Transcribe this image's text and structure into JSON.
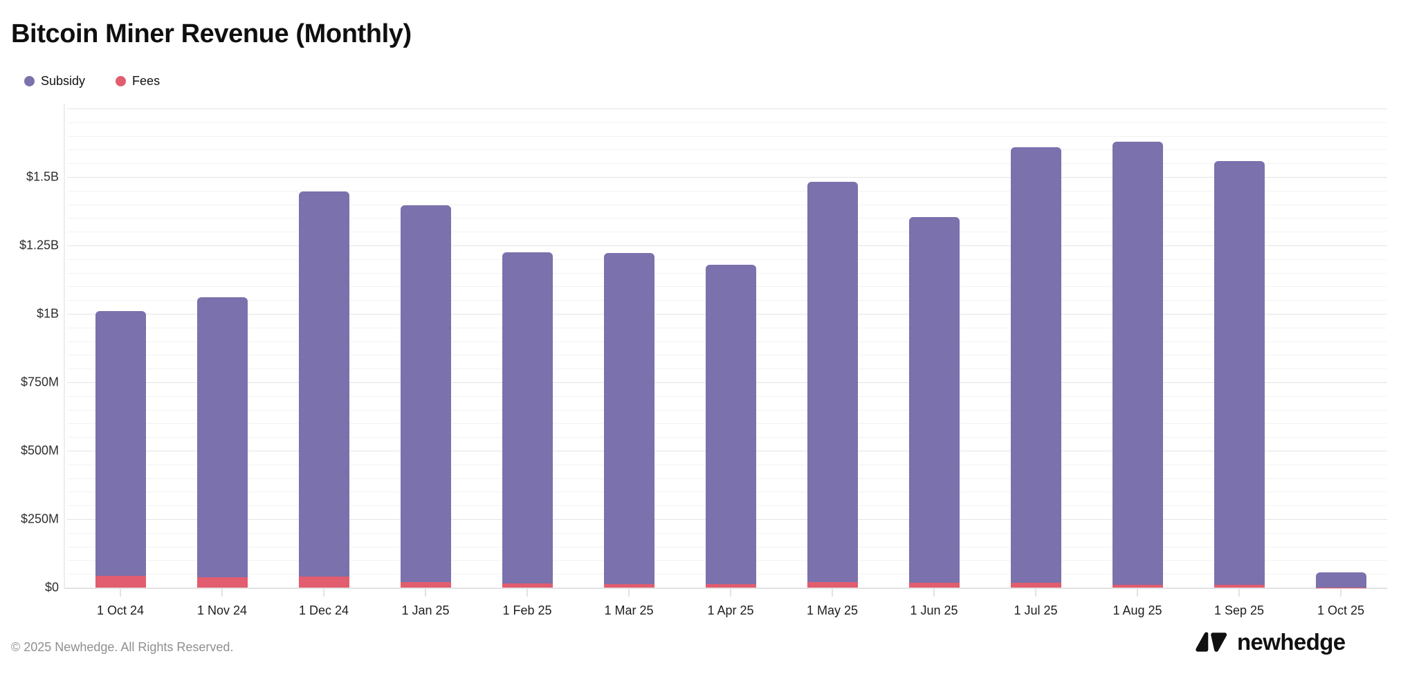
{
  "header": {
    "title": "Bitcoin Miner Revenue (Monthly)"
  },
  "legend": {
    "items": [
      {
        "label": "Subsidy",
        "color": "#7a71ad"
      },
      {
        "label": "Fees",
        "color": "#e15d6f"
      }
    ]
  },
  "chart_data": {
    "type": "bar",
    "stacked": true,
    "title": "Bitcoin Miner Revenue (Monthly)",
    "xlabel": "",
    "ylabel": "",
    "unit": "USD (values in millions, read from $ axis)",
    "categories": [
      "1 Oct 24",
      "1 Nov 24",
      "1 Dec 24",
      "1 Jan 25",
      "1 Feb 25",
      "1 Mar 25",
      "1 Apr 25",
      "1 May 25",
      "1 Jun 25",
      "1 Jul 25",
      "1 Aug 25",
      "1 Sep 25",
      "1 Oct 25"
    ],
    "series": [
      {
        "name": "Subsidy",
        "color": "#7a71ad",
        "values_M": [
          967,
          1023,
          1407,
          1377,
          1210,
          1209,
          1166,
          1463,
          1336,
          1590,
          1618,
          1547,
          54
        ]
      },
      {
        "name": "Fees",
        "color": "#e15d6f",
        "values_M": [
          43,
          38,
          40,
          19,
          15,
          13,
          13,
          19,
          17,
          18,
          11,
          11,
          1
        ]
      }
    ],
    "totals_M": [
      1010,
      1061,
      1447,
      1396,
      1225,
      1222,
      1179,
      1482,
      1353,
      1608,
      1629,
      1558,
      55
    ],
    "yticks": [
      {
        "label": "$0",
        "value_M": 0
      },
      {
        "label": "$250M",
        "value_M": 250
      },
      {
        "label": "$500M",
        "value_M": 500
      },
      {
        "label": "$750M",
        "value_M": 750
      },
      {
        "label": "$1B",
        "value_M": 1000
      },
      {
        "label": "$1.25B",
        "value_M": 1250
      },
      {
        "label": "$1.5B",
        "value_M": 1500
      }
    ],
    "ylim_M": [
      0,
      1750
    ],
    "minor_grid_step_M": 50,
    "major_grid_step_M": 250,
    "grid": true,
    "legend_position": "top-left"
  },
  "footer": {
    "copyright": "© 2025 Newhedge. All Rights Reserved.",
    "brand": "newhedge"
  }
}
